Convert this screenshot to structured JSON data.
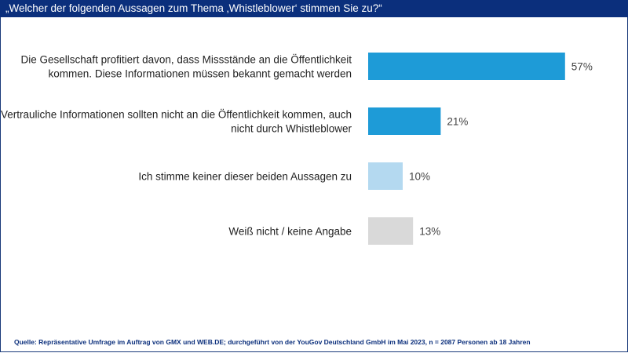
{
  "header": {
    "title": "„Welcher der folgenden Aussagen zum Thema ‚Whistleblower‘ stimmen Sie zu?“"
  },
  "chart_data": {
    "type": "bar",
    "orientation": "horizontal",
    "title": "„Welcher der folgenden Aussagen zum Thema ‚Whistleblower‘ stimmen Sie zu?“",
    "categories": [
      [
        "Die Gesellschaft profitiert davon, dass Missstände an die Öffentlichkeit",
        "kommen. Diese Informationen müssen bekannt gemacht werden"
      ],
      [
        "Vertrauliche Informationen sollten nicht an die Öffentlichkeit kommen, auch",
        "nicht durch Whistleblower"
      ],
      [
        "Ich stimme keiner dieser beiden Aussagen zu"
      ],
      [
        "Weiß nicht / keine Angabe"
      ]
    ],
    "values": [
      57,
      21,
      10,
      13
    ],
    "value_labels": [
      "57%",
      "21%",
      "10%",
      "13%"
    ],
    "colors": [
      "#1e9bd7",
      "#1e9bd7",
      "#b4d9f0",
      "#d9d9d9"
    ],
    "unit": "%",
    "grid": false
  },
  "footer": {
    "source": "Quelle: Repräsentative Umfrage im Auftrag von GMX und WEB.DE; durchgeführt von der YouGov Deutschland GmbH im Mai 2023, n = 2087 Personen ab 18 Jahren"
  }
}
